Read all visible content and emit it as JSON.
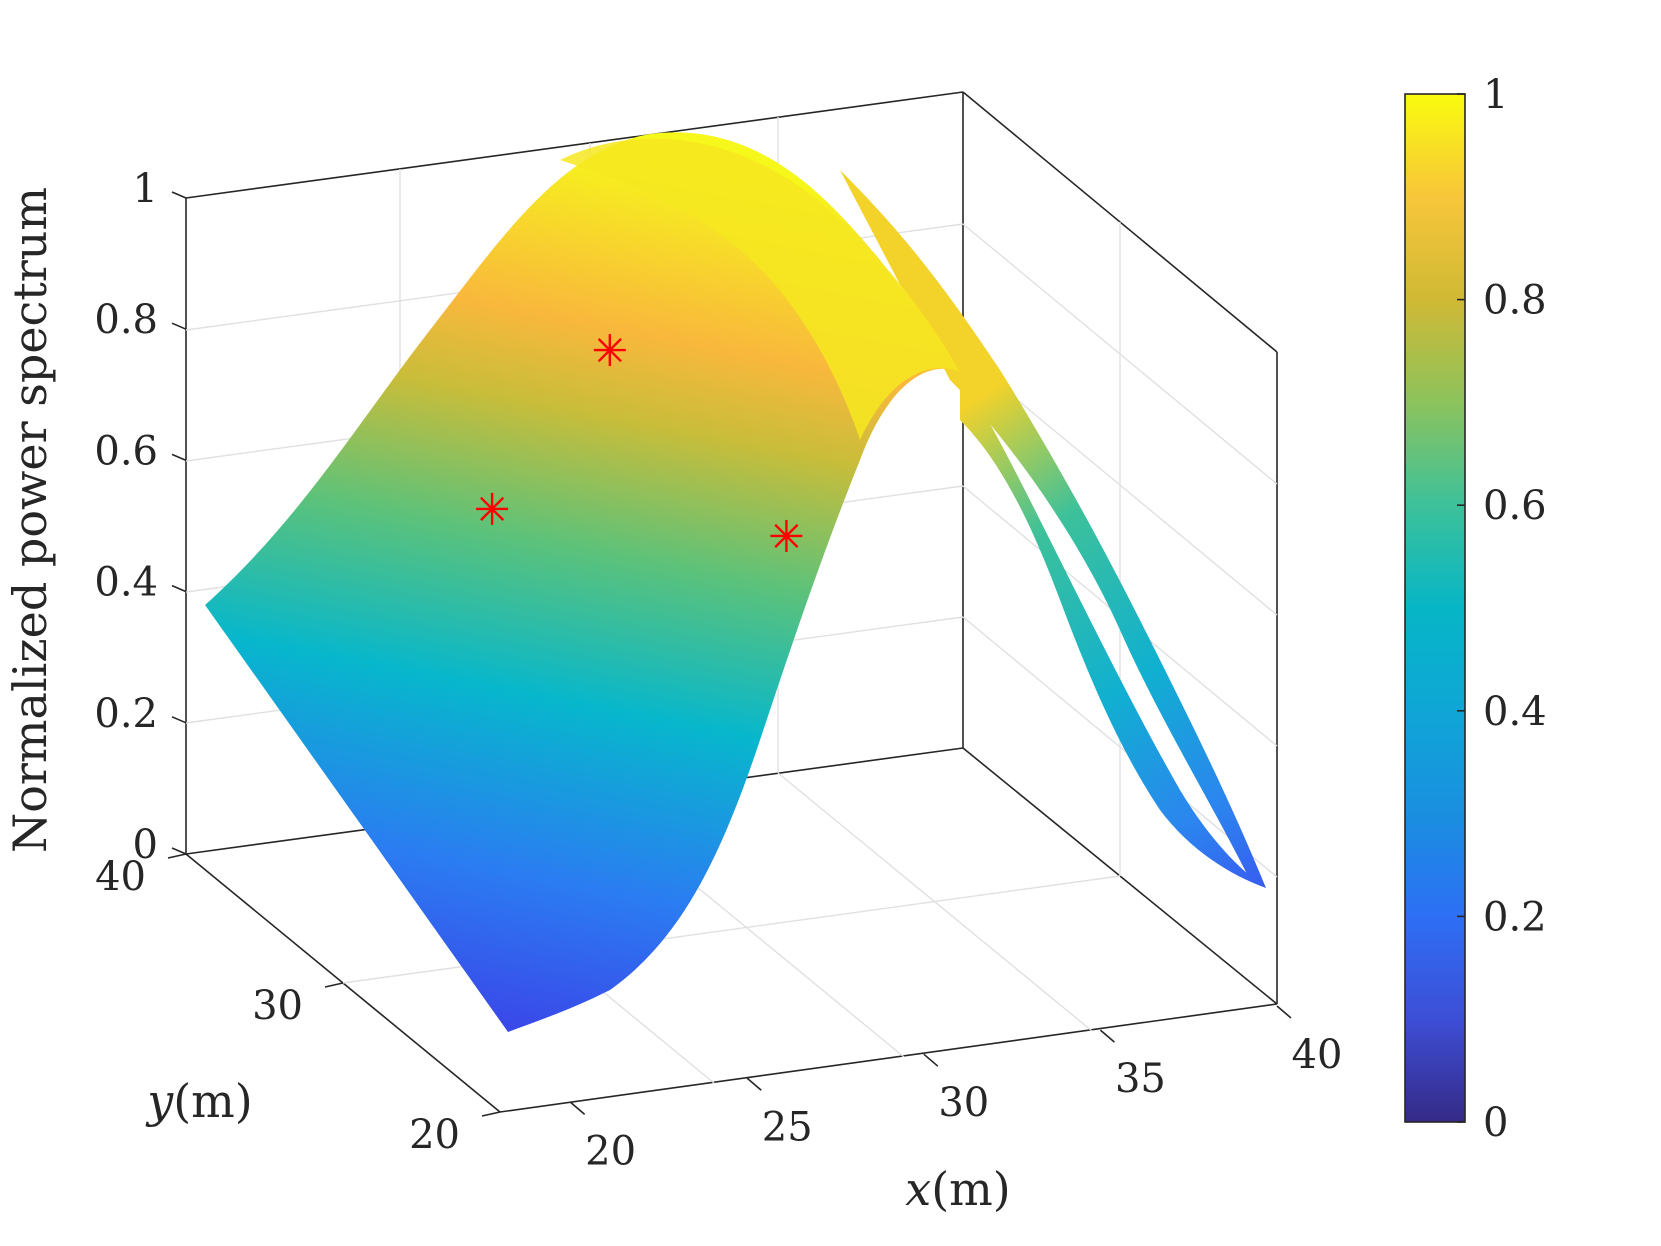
{
  "chart_data": {
    "type": "surface",
    "zlabel": "Normalized power spectrum",
    "xlabel": {
      "var": "x",
      "unit": "(m)"
    },
    "ylabel": {
      "var": "y",
      "unit": "(m)"
    },
    "xlim": [
      18,
      40
    ],
    "ylim": [
      20,
      40
    ],
    "zlim": [
      0,
      1
    ],
    "x_ticks": [
      20,
      25,
      30,
      35,
      40
    ],
    "y_ticks": [
      20,
      30,
      40
    ],
    "z_ticks": [
      0,
      0.2,
      0.4,
      0.6,
      0.8,
      1
    ],
    "z_tick_labels": [
      "0",
      "0.2",
      "0.4",
      "0.6",
      "0.8",
      "1"
    ],
    "colorbar": {
      "ticks": [
        0,
        0.2,
        0.4,
        0.6,
        0.8,
        1
      ],
      "tick_labels": [
        "0",
        "0.2",
        "0.4",
        "0.6",
        "0.8",
        "1"
      ],
      "colormap": "parula"
    },
    "surface_profile": {
      "description": "Gaussian ridge along x, value varies with y",
      "x": [
        18,
        20,
        22,
        24,
        25,
        26,
        27,
        28,
        30,
        32,
        34,
        36,
        38,
        40
      ],
      "z_at_y40": [
        0.35,
        0.5,
        0.72,
        0.92,
        0.98,
        1.0,
        0.99,
        0.95,
        0.8,
        0.62,
        0.45,
        0.32,
        0.22,
        0.15
      ],
      "z_at_y20": [
        0.3,
        0.04,
        0.35,
        0.72,
        0.88,
        0.95,
        0.95,
        0.92,
        0.76,
        0.58,
        0.42,
        0.3,
        0.2,
        0.13
      ]
    },
    "markers": [
      {
        "x": 24,
        "y": 34,
        "z": 0.6
      },
      {
        "x": 30,
        "y": 40,
        "z": 0.68
      },
      {
        "x": 35,
        "y": 40,
        "z": 0.36
      }
    ],
    "colors": {
      "marker": "#ff0000",
      "grid": "#e0e0e0",
      "axis": "#262626"
    },
    "grid": true
  }
}
